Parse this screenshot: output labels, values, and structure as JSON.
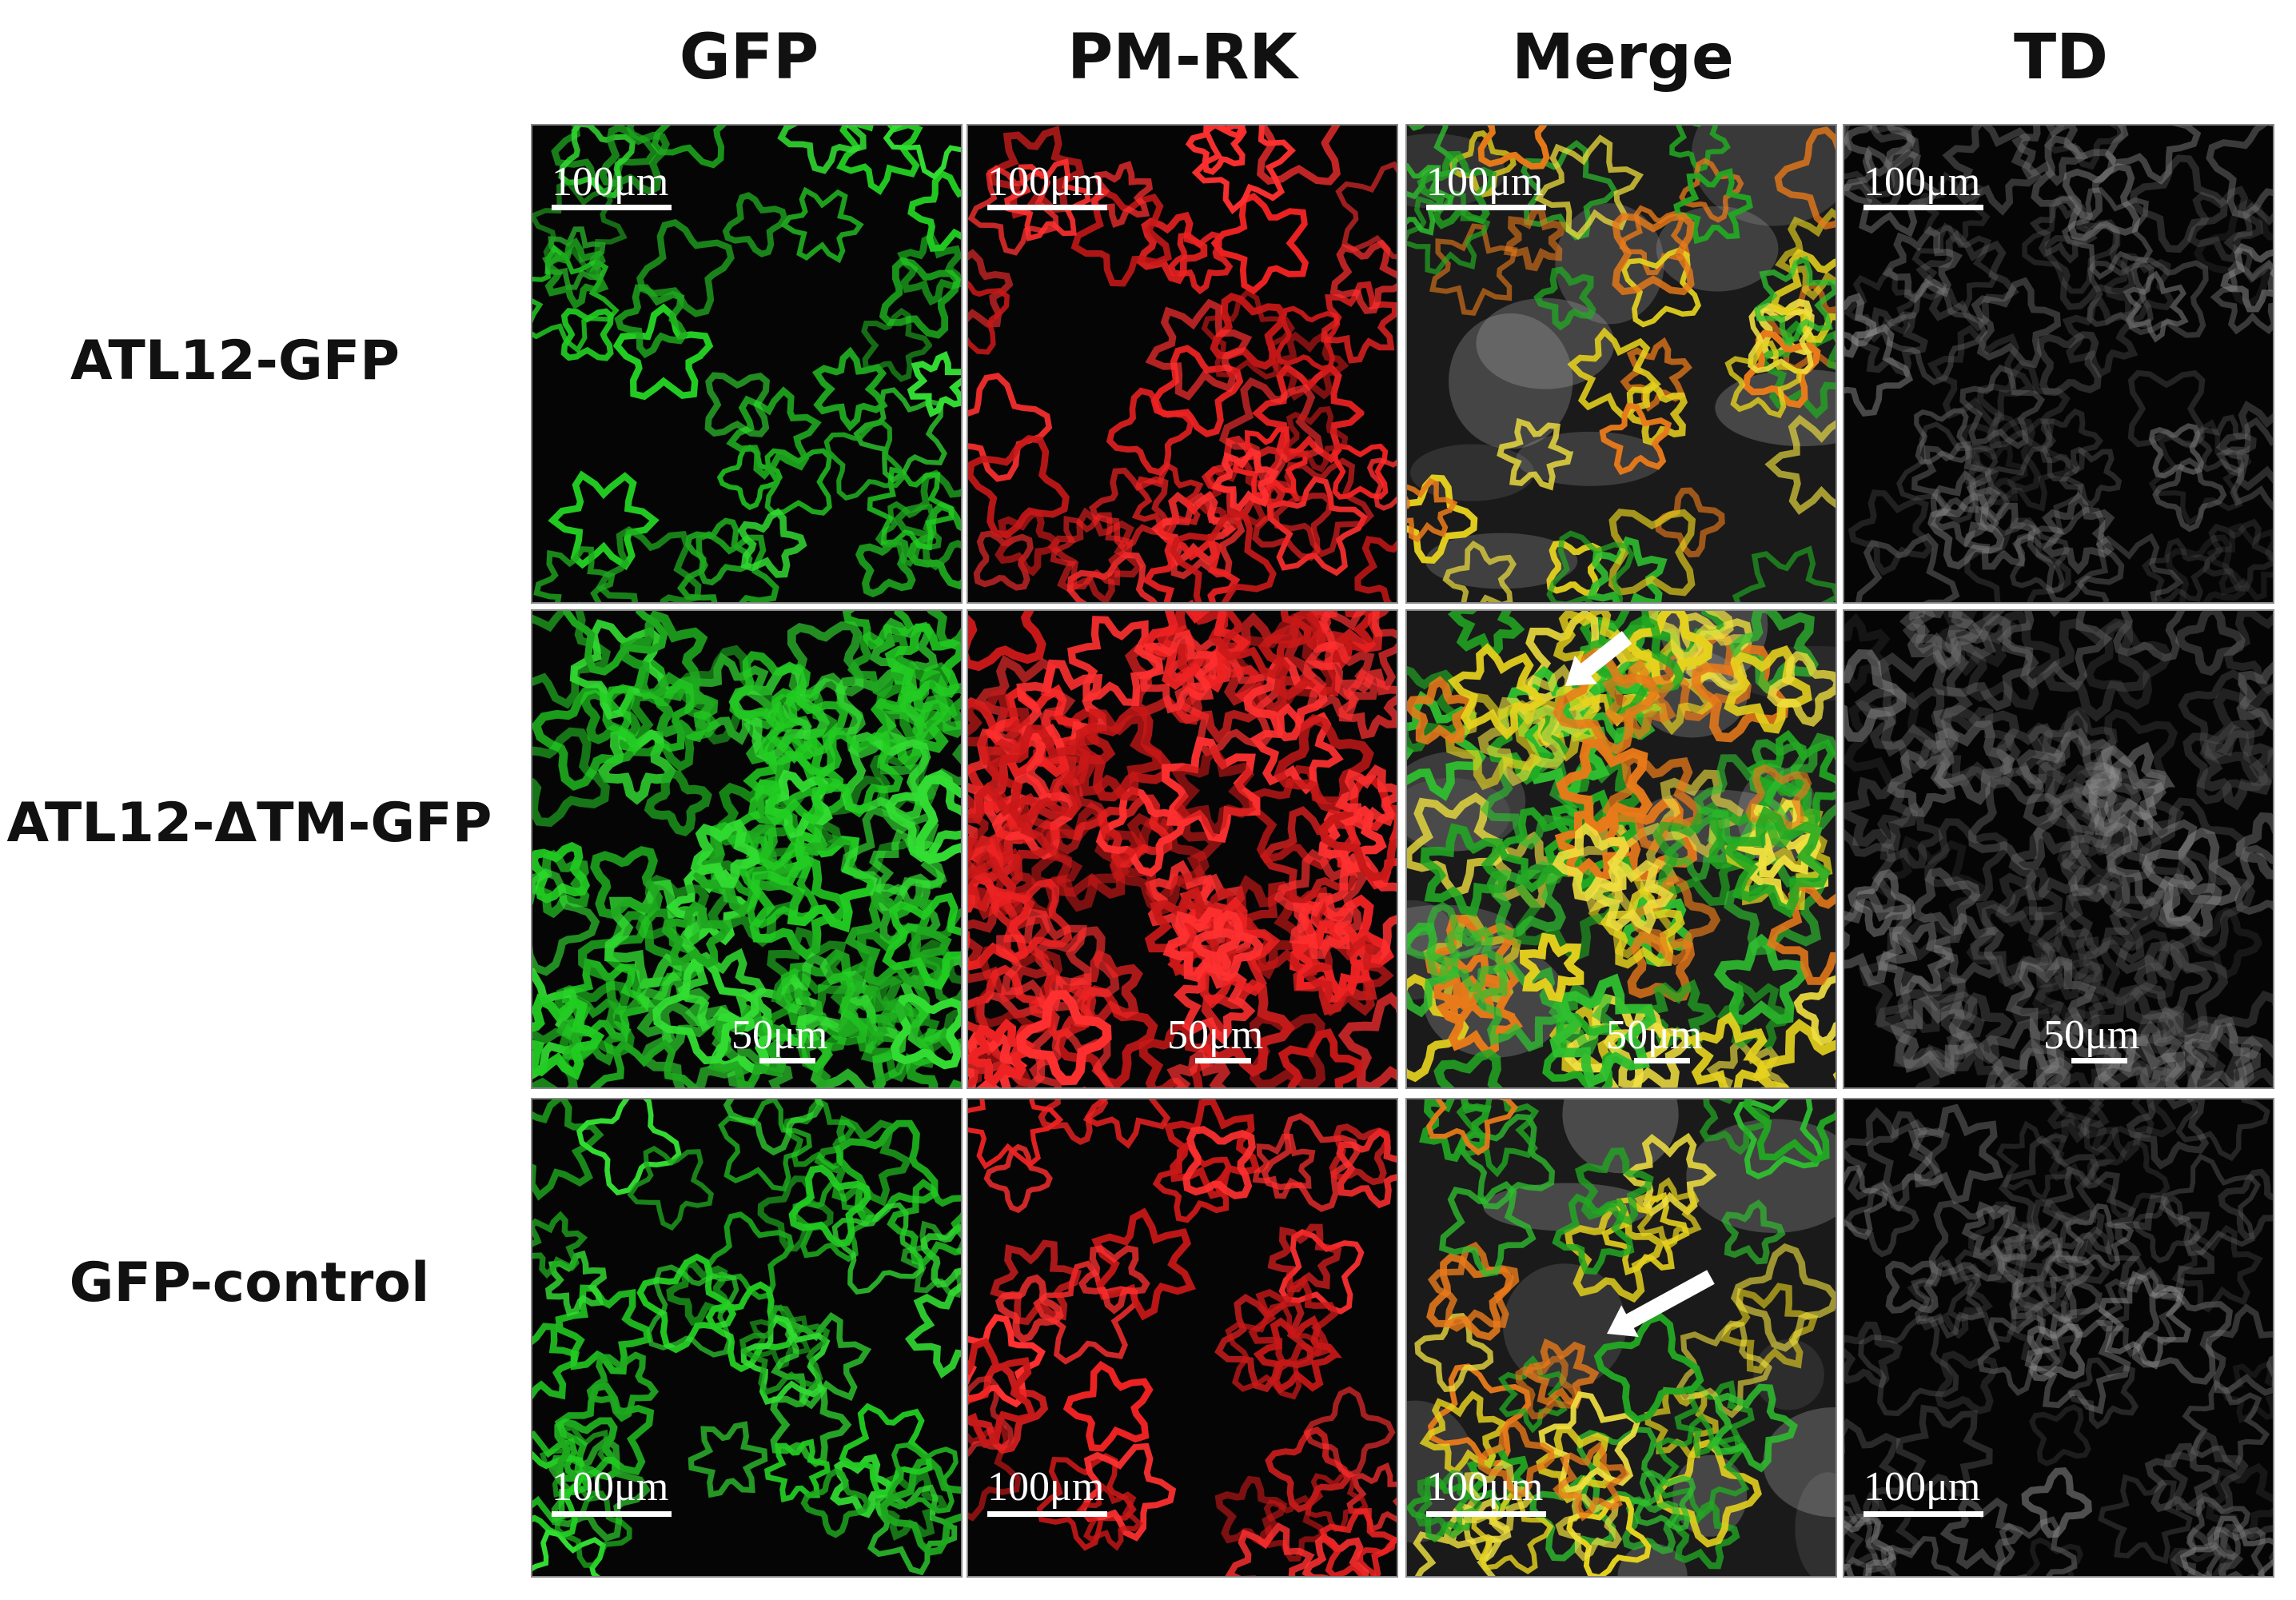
{
  "columns": [
    "GFP",
    "PM-RK",
    "Merge",
    "TD"
  ],
  "rows": [
    {
      "label": "ATL12-GFP",
      "scale_bars": [
        "100μm",
        "100μm",
        "100μm",
        "100μm"
      ]
    },
    {
      "label": "ATL12-ΔTM-GFP",
      "scale_bars": [
        "50μm",
        "50μm",
        "50μm",
        "50μm"
      ]
    },
    {
      "label": "GFP-control",
      "scale_bars": [
        "100μm",
        "100μm",
        "100μm",
        "100μm"
      ]
    }
  ]
}
